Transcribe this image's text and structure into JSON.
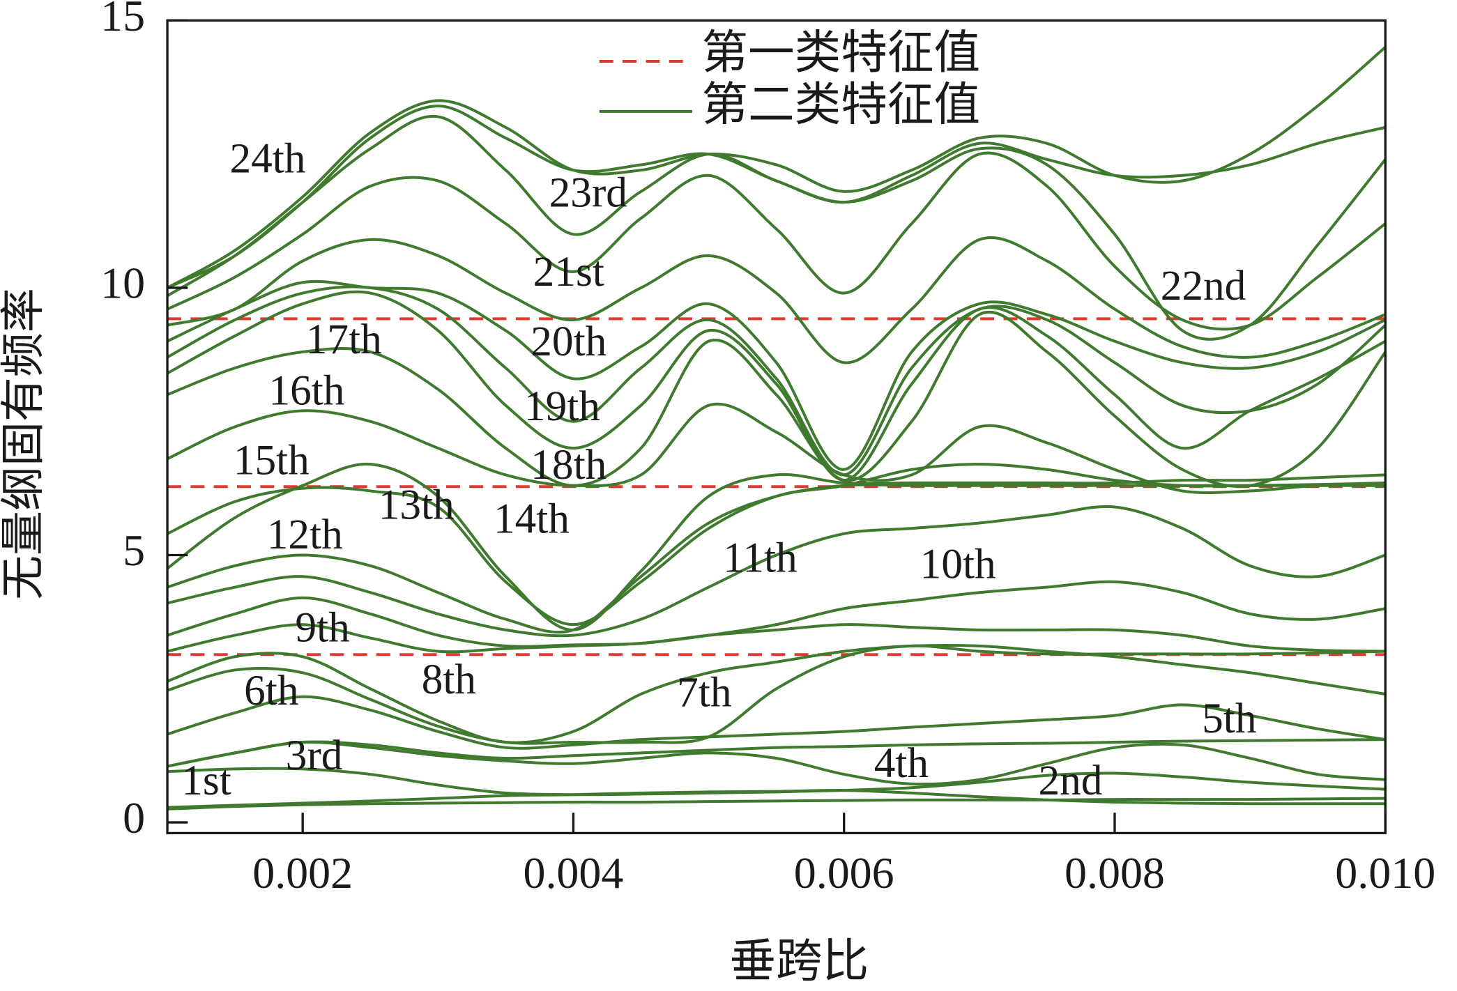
{
  "chart_data": {
    "type": "line",
    "x_label": "垂跨比",
    "y_label": "无量纲固有频率",
    "xlim": [
      0.001,
      0.01
    ],
    "ylim": [
      -0.2,
      15
    ],
    "xticks": [
      0.002,
      0.004,
      0.006,
      0.008,
      {
        "value": 0.01,
        "label": "0.010"
      }
    ],
    "yticks": [
      0,
      5,
      10,
      15
    ],
    "reference_lines": {
      "name": "第一类特征值",
      "color": "#e0392f",
      "style": "dashed",
      "values": [
        3.14,
        6.28,
        9.42
      ]
    },
    "curve_legend": "第二类特征值",
    "x": [
      0.001,
      0.0015,
      0.002,
      0.0025,
      0.003,
      0.0035,
      0.004,
      0.0045,
      0.005,
      0.0055,
      0.006,
      0.0065,
      0.007,
      0.0075,
      0.008,
      0.0085,
      0.009,
      0.0095,
      0.01
    ],
    "series": [
      {
        "name": "1st",
        "color": "#3f7a2e",
        "values": [
          0.25,
          0.3,
          0.33,
          0.35,
          0.36,
          0.37,
          0.38,
          0.38,
          0.39,
          0.4,
          0.41,
          0.42,
          0.42,
          0.42,
          0.43,
          0.43,
          0.43,
          0.44,
          0.45
        ]
      },
      {
        "name": "2nd",
        "color": "#3f7a2e",
        "values": [
          0.28,
          0.32,
          0.36,
          0.4,
          0.45,
          0.5,
          0.52,
          0.55,
          0.57,
          0.58,
          0.6,
          0.55,
          0.48,
          0.42,
          0.38,
          0.36,
          0.35,
          0.35,
          0.35
        ]
      },
      {
        "name": "3rd",
        "color": "#3f7a2e",
        "values": [
          0.95,
          1.0,
          1.0,
          0.9,
          0.7,
          0.55,
          0.52,
          0.53,
          0.55,
          0.57,
          0.6,
          0.65,
          0.75,
          0.88,
          0.92,
          0.85,
          0.75,
          0.68,
          0.62
        ]
      },
      {
        "name": "4th",
        "color": "#3f7a2e",
        "values": [
          1.05,
          1.3,
          1.5,
          1.4,
          1.25,
          1.15,
          1.1,
          1.2,
          1.3,
          1.2,
          0.9,
          0.72,
          0.8,
          1.1,
          1.4,
          1.45,
          1.2,
          0.9,
          0.8
        ]
      },
      {
        "name": "5th",
        "color": "#3f7a2e",
        "values": [
          1.05,
          1.3,
          1.5,
          1.45,
          1.3,
          1.2,
          1.25,
          1.3,
          1.35,
          1.4,
          1.42,
          1.45,
          1.47,
          1.48,
          1.5,
          1.52,
          1.53,
          1.54,
          1.55
        ]
      },
      {
        "name": "6th",
        "color": "#3f7a2e",
        "values": [
          1.65,
          2.05,
          2.35,
          2.1,
          1.7,
          1.4,
          1.45,
          1.55,
          1.6,
          1.65,
          1.7,
          1.78,
          1.85,
          1.92,
          2.0,
          2.2,
          2.0,
          1.75,
          1.55
        ]
      },
      {
        "name": "7th",
        "color": "#3f7a2e",
        "values": [
          2.47,
          2.85,
          2.8,
          2.3,
          1.8,
          1.5,
          1.5,
          1.5,
          1.6,
          2.5,
          3.1,
          3.3,
          3.2,
          3.15,
          3.15,
          3.15,
          3.15,
          3.17,
          3.2
        ]
      },
      {
        "name": "8th",
        "color": "#3f7a2e",
        "values": [
          2.64,
          3.1,
          3.1,
          2.5,
          1.9,
          1.5,
          1.7,
          2.4,
          2.8,
          3.0,
          3.2,
          3.3,
          3.3,
          3.2,
          3.1,
          2.95,
          2.8,
          2.6,
          2.4
        ]
      },
      {
        "name": "9th",
        "color": "#3f7a2e",
        "values": [
          3.2,
          3.5,
          3.7,
          3.45,
          3.2,
          3.25,
          3.3,
          3.35,
          3.5,
          3.6,
          3.7,
          3.65,
          3.6,
          3.6,
          3.6,
          3.5,
          3.3,
          3.22,
          3.2
        ]
      },
      {
        "name": "10th",
        "color": "#3f7a2e",
        "values": [
          3.5,
          3.9,
          4.2,
          3.9,
          3.5,
          3.3,
          3.32,
          3.35,
          3.5,
          3.7,
          4.0,
          4.15,
          4.3,
          4.4,
          4.5,
          4.3,
          3.9,
          3.8,
          4.0
        ]
      },
      {
        "name": "11th",
        "color": "#3f7a2e",
        "values": [
          4.1,
          4.4,
          4.6,
          4.3,
          3.9,
          3.6,
          3.5,
          3.8,
          4.4,
          5.0,
          5.4,
          5.5,
          5.6,
          5.75,
          5.9,
          5.5,
          4.8,
          4.6,
          5.0
        ]
      },
      {
        "name": "12th",
        "color": "#3f7a2e",
        "values": [
          4.4,
          4.8,
          5.0,
          4.8,
          4.3,
          3.8,
          3.6,
          4.6,
          5.6,
          6.1,
          6.3,
          6.3,
          6.3,
          6.3,
          6.3,
          6.3,
          6.3,
          6.3,
          6.3
        ]
      },
      {
        "name": "13th",
        "color": "#3f7a2e",
        "values": [
          4.75,
          5.7,
          6.3,
          6.7,
          6.1,
          4.6,
          3.6,
          4.7,
          6.1,
          6.5,
          6.35,
          6.35,
          6.35,
          6.35,
          6.35,
          6.4,
          6.4,
          6.45,
          6.5
        ]
      },
      {
        "name": "14th",
        "color": "#3f7a2e",
        "values": [
          5.4,
          6.0,
          6.25,
          6.2,
          5.9,
          4.5,
          3.7,
          4.5,
          5.5,
          6.1,
          6.3,
          6.6,
          6.7,
          6.6,
          6.4,
          6.3,
          6.3,
          6.32,
          6.35
        ]
      },
      {
        "name": "15th",
        "color": "#3f7a2e",
        "values": [
          6.8,
          7.4,
          7.7,
          7.5,
          7.0,
          6.5,
          6.3,
          6.5,
          7.8,
          7.3,
          6.5,
          6.5,
          7.4,
          7.1,
          6.6,
          6.2,
          6.2,
          6.3,
          6.3
        ]
      },
      {
        "name": "16th",
        "color": "#3f7a2e",
        "values": [
          8.0,
          8.5,
          8.8,
          8.8,
          8.1,
          7.0,
          6.3,
          7.0,
          9.0,
          8.0,
          6.4,
          7.5,
          9.5,
          8.8,
          7.6,
          6.6,
          6.3,
          7.0,
          8.8
        ]
      },
      {
        "name": "17th",
        "color": "#3f7a2e",
        "values": [
          8.4,
          9.1,
          9.7,
          9.9,
          9.2,
          7.8,
          7.0,
          7.8,
          9.2,
          8.2,
          6.4,
          8.2,
          9.6,
          9.1,
          8.0,
          7.0,
          7.7,
          8.3,
          9.0
        ]
      },
      {
        "name": "18th",
        "color": "#3f7a2e",
        "values": [
          8.7,
          9.4,
          9.9,
          10.0,
          9.6,
          8.5,
          7.5,
          8.5,
          9.4,
          8.3,
          6.5,
          8.5,
          9.6,
          9.4,
          8.6,
          7.8,
          7.7,
          8.2,
          9.3
        ]
      },
      {
        "name": "19th",
        "color": "#3f7a2e",
        "values": [
          9.0,
          9.6,
          10.1,
          10.0,
          9.9,
          9.2,
          8.3,
          8.9,
          9.7,
          8.6,
          6.6,
          8.8,
          9.7,
          9.5,
          9.0,
          8.6,
          8.5,
          8.8,
          9.4
        ]
      },
      {
        "name": "20th",
        "color": "#3f7a2e",
        "values": [
          9.3,
          9.6,
          10.5,
          10.9,
          10.6,
          9.9,
          9.4,
          10.0,
          10.6,
          9.9,
          8.6,
          9.6,
          10.9,
          10.5,
          9.6,
          8.9,
          8.7,
          9.0,
          9.5
        ]
      },
      {
        "name": "21st",
        "color": "#3f7a2e",
        "values": [
          9.6,
          10.2,
          11.0,
          11.9,
          12.0,
          11.2,
          10.3,
          11.3,
          12.1,
          11.1,
          9.9,
          11.2,
          12.5,
          11.9,
          10.4,
          9.4,
          9.3,
          10.2,
          11.2
        ]
      },
      {
        "name": "22nd",
        "color": "#3f7a2e",
        "values": [
          9.85,
          10.6,
          11.6,
          12.6,
          13.2,
          12.2,
          11.0,
          11.8,
          12.5,
          12.0,
          11.6,
          12.0,
          12.6,
          12.3,
          11.0,
          9.2,
          9.3,
          10.8,
          12.4
        ]
      },
      {
        "name": "23rd",
        "color": "#3f7a2e",
        "values": [
          10.0,
          10.6,
          11.6,
          12.8,
          13.4,
          12.8,
          12.2,
          12.3,
          12.5,
          12.0,
          11.6,
          12.1,
          12.7,
          12.4,
          12.1,
          12.1,
          12.3,
          12.7,
          13.0
        ]
      },
      {
        "name": "24th",
        "color": "#3f7a2e",
        "values": [
          10.0,
          10.7,
          11.7,
          12.9,
          13.5,
          13.0,
          12.2,
          12.2,
          12.5,
          12.3,
          11.8,
          12.2,
          12.8,
          12.7,
          12.1,
          12.0,
          12.5,
          13.4,
          14.5
        ]
      }
    ]
  }
}
